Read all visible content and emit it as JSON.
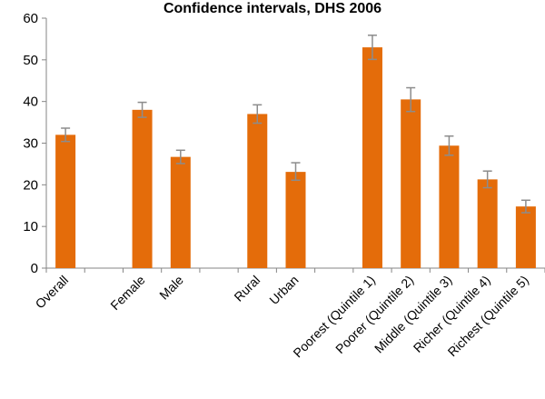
{
  "chart_data": {
    "type": "bar",
    "title": "Confidence intervals, DHS 2006",
    "xlabel": "",
    "ylabel": "",
    "ylim": [
      0,
      60
    ],
    "yticks": [
      0,
      10,
      20,
      30,
      40,
      50,
      60
    ],
    "grid": false,
    "legend": "none",
    "bar_color": "#E46C0A",
    "error_bar_color": "#8C8C8C",
    "axis_color": "#868686",
    "categories": [
      "Overall",
      "",
      "Female",
      "Male",
      "",
      "Rural",
      "Urban",
      "",
      "Poorest (Quintile 1)",
      "Poorer (Quintile 2)",
      "Middle (Quintile 3)",
      "Richer (Quintile 4)",
      "Richest (Quintile 5)"
    ],
    "values": [
      32,
      null,
      38,
      26.7,
      null,
      37,
      23.1,
      null,
      53,
      40.5,
      29.4,
      21.3,
      14.8
    ],
    "err_low": [
      30.4,
      null,
      36.2,
      25.1,
      null,
      34.8,
      21.1,
      null,
      50.1,
      37.6,
      27.1,
      19.3,
      13.3
    ],
    "err_high": [
      33.6,
      null,
      39.8,
      28.3,
      null,
      39.2,
      25.3,
      null,
      55.9,
      43.3,
      31.7,
      23.3,
      16.3
    ]
  }
}
